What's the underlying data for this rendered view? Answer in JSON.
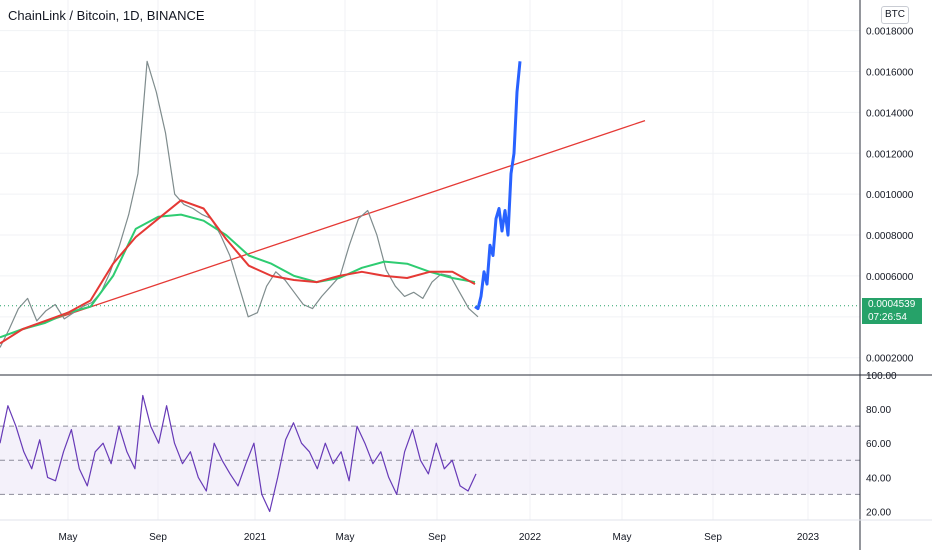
{
  "title": "ChainLink / Bitcoin, 1D, BINANCE",
  "currency_badge": "BTC",
  "last_price": "0.0004539",
  "countdown": "07:26:54",
  "colors": {
    "candles": "#7f8c8d",
    "forecast": "#2962ff",
    "trendline": "#e53935",
    "ma_green": "#2ecc71",
    "ma_red": "#e53935",
    "rsi": "#673ab7",
    "rsi_band": "#ede7f6",
    "last_price_tag": "#26a269"
  },
  "chart_data": [
    {
      "type": "line",
      "panel": "price",
      "x_ticks": [
        "May",
        "Sep",
        "2021",
        "May",
        "Sep",
        "2022",
        "May",
        "Sep",
        "2023"
      ],
      "y_ticks": [
        "0.0002000",
        "0.0004000",
        "0.0006000",
        "0.0008000",
        "0.0010000",
        "0.0012000",
        "0.0014000",
        "0.0016000",
        "0.0018000"
      ],
      "ylim": [
        0.00013,
        0.00195
      ],
      "series": [
        {
          "values": [
            0.00025,
            0.00034,
            0.00044,
            0.00049,
            0.00038,
            0.00043,
            0.00046,
            0.00039,
            0.00042,
            0.00045,
            0.00047,
            0.00052,
            0.00062,
            0.00075,
            0.0009,
            0.0011,
            0.00165,
            0.0015,
            0.0013,
            0.001,
            0.00095,
            0.00093,
            0.0009,
            0.00088,
            0.0008,
            0.0007,
            0.00055,
            0.0004,
            0.00042,
            0.00055,
            0.00062,
            0.00058,
            0.00052,
            0.00046,
            0.00044,
            0.0005,
            0.00055,
            0.0006,
            0.00075,
            0.00088,
            0.00092,
            0.0008,
            0.00063,
            0.00055,
            0.0005,
            0.00052,
            0.00049,
            0.00057,
            0.00061,
            0.0006,
            0.00052,
            0.00044,
            0.0004
          ]
        },
        {
          "values": [
            0.00045,
            0.00044,
            0.0005,
            0.00062,
            0.00056,
            0.00075,
            0.0007,
            0.00088,
            0.00093,
            0.00082,
            0.00092,
            0.0008,
            0.0011,
            0.0012,
            0.0015,
            0.00165
          ]
        },
        {
          "values": [
            0.0003,
            0.00034,
            0.00037,
            0.00042,
            0.00045,
            0.0006,
            0.00083,
            0.00089,
            0.0009,
            0.00087,
            0.0008,
            0.0007,
            0.00066,
            0.0006,
            0.00057,
            0.00059,
            0.00064,
            0.00067,
            0.00066,
            0.00062,
            0.00059,
            0.00057
          ]
        },
        {
          "values": [
            0.00027,
            0.00034,
            0.00038,
            0.00042,
            0.00048,
            0.00066,
            0.00079,
            0.00088,
            0.00097,
            0.00093,
            0.00078,
            0.00065,
            0.0006,
            0.00058,
            0.00057,
            0.0006,
            0.00062,
            0.0006,
            0.00059,
            0.00062,
            0.00062,
            0.00056
          ]
        },
        {
          "values": [
            0.0003,
            0.00136
          ]
        }
      ]
    },
    {
      "type": "line",
      "panel": "rsi",
      "y_ticks": [
        "20.00",
        "40.00",
        "60.00",
        "80.00",
        "100.00"
      ],
      "ylim": [
        15,
        100
      ],
      "band": [
        30,
        70
      ],
      "midline": 50,
      "series": [
        {
          "values": [
            60,
            82,
            70,
            55,
            45,
            62,
            40,
            38,
            55,
            68,
            45,
            35,
            55,
            60,
            48,
            70,
            55,
            45,
            88,
            70,
            60,
            82,
            60,
            48,
            55,
            40,
            32,
            60,
            50,
            42,
            35,
            48,
            60,
            30,
            20,
            40,
            62,
            72,
            60,
            55,
            45,
            60,
            48,
            55,
            38,
            70,
            60,
            48,
            55,
            40,
            30,
            55,
            68,
            50,
            42,
            60,
            45,
            50,
            35,
            32,
            42
          ]
        }
      ]
    }
  ]
}
